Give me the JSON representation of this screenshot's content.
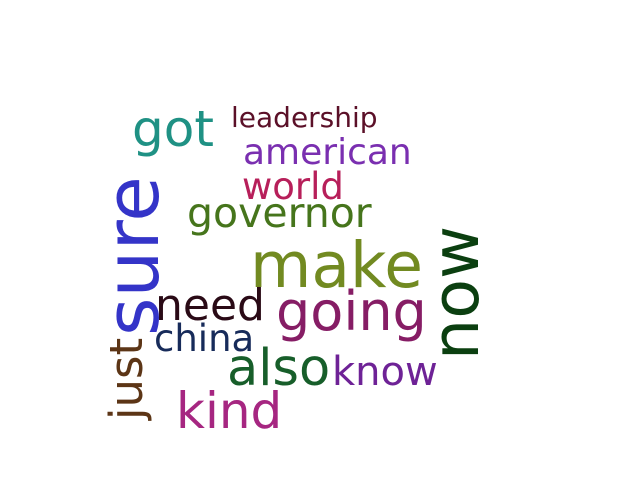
{
  "words": {
    "got": {
      "text": "got",
      "color": "#1f9184"
    },
    "leadership": {
      "text": "leadership",
      "color": "#5b1028"
    },
    "american": {
      "text": "american",
      "color": "#7a2fb0"
    },
    "world": {
      "text": "world",
      "color": "#b71f5a"
    },
    "governor": {
      "text": "governor",
      "color": "#46751c"
    },
    "make": {
      "text": "make",
      "color": "#728a21"
    },
    "need": {
      "text": "need",
      "color": "#2a0a16"
    },
    "going": {
      "text": "going",
      "color": "#861d65"
    },
    "china": {
      "text": "china",
      "color": "#172b5a"
    },
    "also": {
      "text": "also",
      "color": "#175e2a"
    },
    "know": {
      "text": "know",
      "color": "#6e2296"
    },
    "kind": {
      "text": "kind",
      "color": "#a62681"
    },
    "sure": {
      "text": "sure",
      "color": "#3434c8"
    },
    "now": {
      "text": "now",
      "color": "#0b3f10"
    },
    "just": {
      "text": "just",
      "color": "#5c3516"
    }
  }
}
